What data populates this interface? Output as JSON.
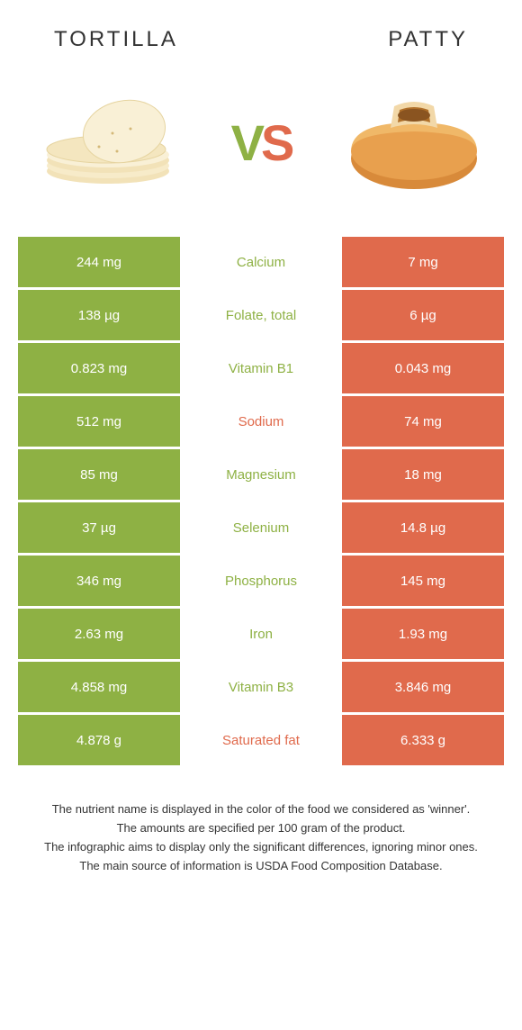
{
  "header": {
    "left_title": "Tortilla",
    "right_title": "Patty"
  },
  "vs": {
    "v": "V",
    "s": "S"
  },
  "colors": {
    "left_bg": "#8eb144",
    "right_bg": "#e06a4c",
    "left_text": "#8eb144",
    "right_text": "#e06a4c"
  },
  "rows": [
    {
      "left": "244 mg",
      "label": "Calcium",
      "right": "7 mg",
      "winner": "left"
    },
    {
      "left": "138 µg",
      "label": "Folate, total",
      "right": "6 µg",
      "winner": "left"
    },
    {
      "left": "0.823 mg",
      "label": "Vitamin B1",
      "right": "0.043 mg",
      "winner": "left"
    },
    {
      "left": "512 mg",
      "label": "Sodium",
      "right": "74 mg",
      "winner": "right"
    },
    {
      "left": "85 mg",
      "label": "Magnesium",
      "right": "18 mg",
      "winner": "left"
    },
    {
      "left": "37 µg",
      "label": "Selenium",
      "right": "14.8 µg",
      "winner": "left"
    },
    {
      "left": "346 mg",
      "label": "Phosphorus",
      "right": "145 mg",
      "winner": "left"
    },
    {
      "left": "2.63 mg",
      "label": "Iron",
      "right": "1.93 mg",
      "winner": "left"
    },
    {
      "left": "4.858 mg",
      "label": "Vitamin B3",
      "right": "3.846 mg",
      "winner": "left"
    },
    {
      "left": "4.878 g",
      "label": "Saturated fat",
      "right": "6.333 g",
      "winner": "right"
    }
  ],
  "footer": {
    "line1": "The nutrient name is displayed in the color of the food we considered as 'winner'.",
    "line2": "The amounts are specified per 100 gram of the product.",
    "line3": "The infographic aims to display only the significant differences, ignoring minor ones.",
    "line4": "The main source of information is USDA Food Composition Database."
  }
}
